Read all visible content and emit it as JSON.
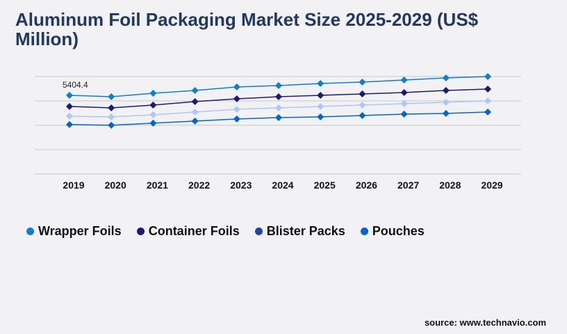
{
  "title": "Aluminum Foil Packaging Market Size 2025-2029 (US$ Million)",
  "source": "source: www.technavio.com",
  "chart_data": {
    "type": "line",
    "title": "Aluminum Foil Packaging Market Size 2025-2029 (US$ Million)",
    "categories": [
      "2019",
      "2020",
      "2021",
      "2022",
      "2023",
      "2024",
      "2025",
      "2026",
      "2027",
      "2028",
      "2029"
    ],
    "ylim": [
      0,
      6696
    ],
    "grid": true,
    "legend": "bottom",
    "annotation": "5404.4",
    "series": [
      {
        "name": "Wrapper Foils",
        "color": "#0a7fd4",
        "legend_color": "#0a7fd4",
        "values": [
          5404.4,
          5309,
          5548,
          5740,
          5979,
          6074,
          6218,
          6314,
          6457,
          6601,
          6696
        ]
      },
      {
        "name": "Container Foils",
        "color": "#1a1a7a",
        "legend_color": "#1a1a7a",
        "values": [
          4640,
          4544,
          4735,
          4974,
          5166,
          5309,
          5405,
          5500,
          5596,
          5740,
          5835
        ]
      },
      {
        "name": "Blister Packs",
        "color": "#a8c8ff",
        "legend_color": "#1e44a8",
        "values": [
          3970,
          3922,
          4066,
          4257,
          4448,
          4544,
          4640,
          4735,
          4831,
          4926,
          5022
        ]
      },
      {
        "name": "Pouches",
        "color": "#0066cc",
        "legend_color": "#0066cc",
        "values": [
          3396,
          3348,
          3492,
          3635,
          3779,
          3874,
          3922,
          4018,
          4113,
          4161,
          4257
        ]
      }
    ]
  }
}
